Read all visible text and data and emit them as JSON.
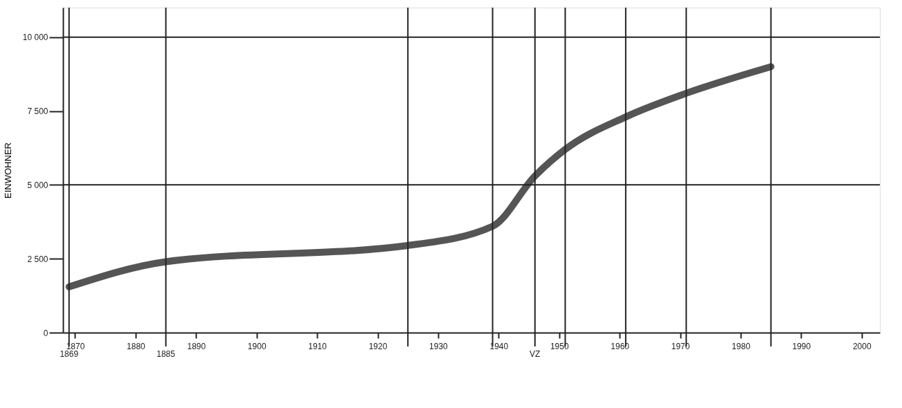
{
  "chart_data": {
    "type": "line",
    "ylabel": "EINWOHNER",
    "x": [
      1869,
      1885,
      1925,
      1939,
      1946,
      1951,
      1961,
      1971,
      1985
    ],
    "series": [
      {
        "color": "#555555",
        "values": [
          1550,
          2400,
          2950,
          3600,
          5300,
          6200,
          7300,
          8100,
          9000
        ]
      }
    ],
    "xlim": [
      1868,
      2003
    ],
    "ylim": [
      0,
      11000
    ],
    "xticks": [
      1870,
      1880,
      1890,
      1900,
      1910,
      1920,
      1930,
      1940,
      1950,
      1960,
      1970,
      1980,
      1990,
      2000
    ],
    "yticks": [
      0,
      {
        "value": 2500,
        "label": "2 500"
      },
      {
        "value": 5000,
        "label": "5 000"
      },
      {
        "value": 7500,
        "label": "7 500"
      },
      {
        "value": 10000,
        "label": "10 000"
      }
    ],
    "grid": false,
    "line_style": "solid",
    "ref_lines": [
      {
        "axis": "y",
        "value": 5000,
        "label": null
      },
      {
        "axis": "y",
        "value": 10000,
        "label": null
      },
      {
        "axis": "x",
        "value": 1869,
        "label": "1869"
      },
      {
        "axis": "x",
        "value": 1885,
        "label": "1885"
      },
      {
        "axis": "x",
        "value": 1925,
        "label": null
      },
      {
        "axis": "x",
        "value": 1939,
        "label": null
      },
      {
        "axis": "x",
        "value": 1946,
        "label": "VZ"
      },
      {
        "axis": "x",
        "value": 1951,
        "label": null
      },
      {
        "axis": "x",
        "value": 1961,
        "label": null
      },
      {
        "axis": "x",
        "value": 1971,
        "label": null
      },
      {
        "axis": "x",
        "value": 1985,
        "label": null
      }
    ]
  }
}
